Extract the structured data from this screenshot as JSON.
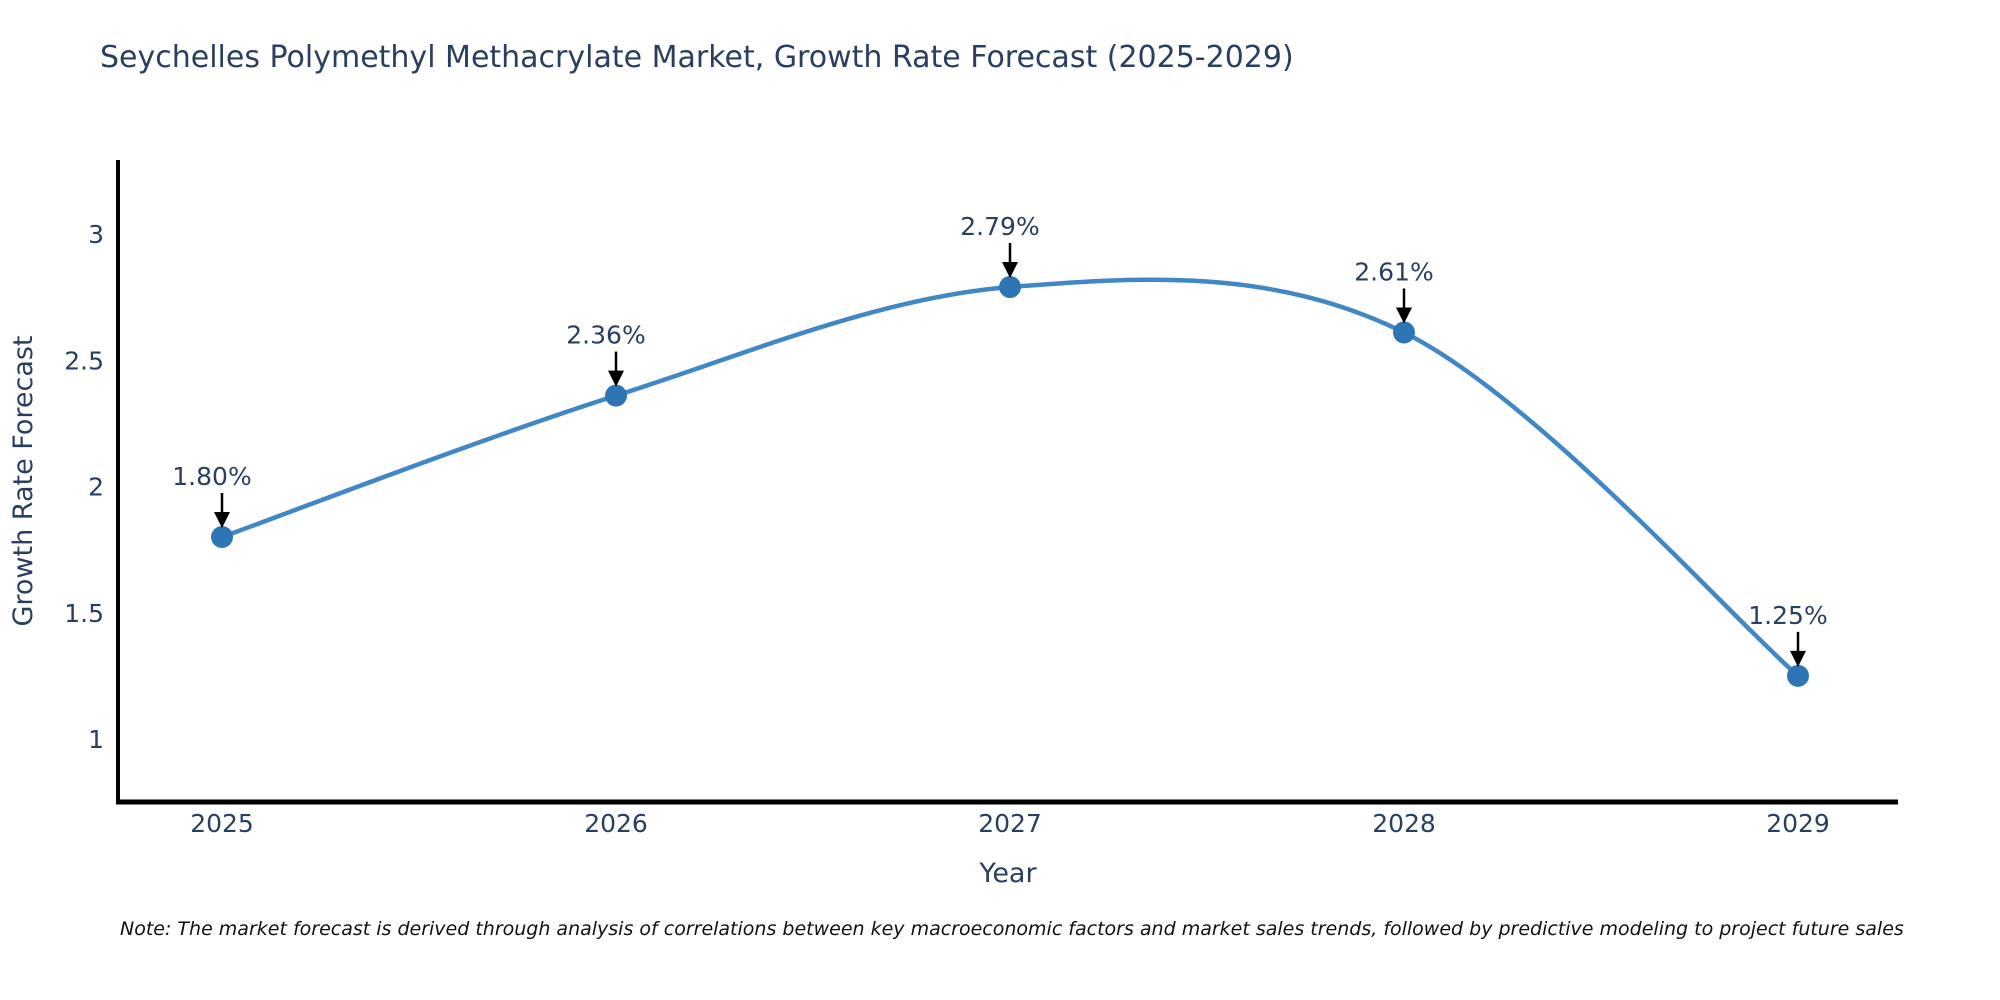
{
  "page": {
    "title": "Seychelles Polymethyl Methacrylate Market, Growth Rate Forecast (2025-2029)",
    "note": "Note: The market forecast is derived through analysis of correlations between key macroeconomic factors and market sales trends, followed by predictive modeling to project future sales"
  },
  "chart_data": {
    "type": "line",
    "title": "Seychelles Polymethyl Methacrylate Market, Growth Rate Forecast (2025-2029)",
    "xlabel": "Year",
    "ylabel": "Growth Rate Forecast",
    "categories": [
      "2025",
      "2026",
      "2027",
      "2028",
      "2029"
    ],
    "values": [
      1.8,
      2.36,
      2.79,
      2.61,
      1.25
    ],
    "point_labels": [
      "1.80%",
      "2.36%",
      "2.79%",
      "2.61%",
      "1.25%"
    ],
    "yticks": [
      "1",
      "1.5",
      "2",
      "2.5",
      "3"
    ],
    "ytick_values": [
      1,
      1.5,
      2,
      2.5,
      3
    ],
    "ylim": [
      0.75,
      3.3
    ],
    "line_shape": "spline",
    "grid": false,
    "legend_position": "none",
    "annotation_arrows": true,
    "colors": {
      "line": "#4287c5",
      "marker": "#2e75b6",
      "arrow": "#000000",
      "text": "#2a3f5f",
      "axis": "#000000"
    }
  }
}
